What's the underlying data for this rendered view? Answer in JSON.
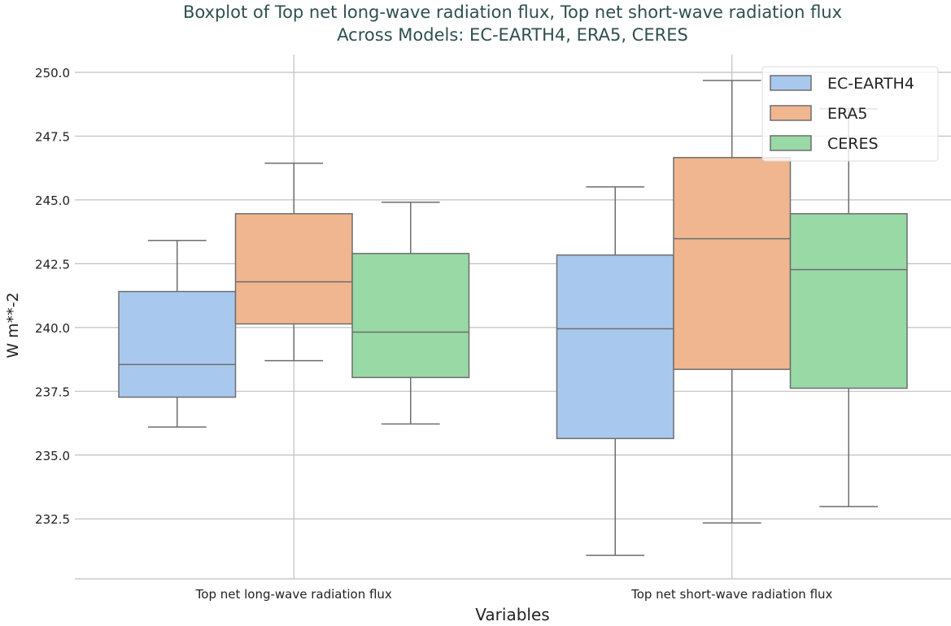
{
  "chart_data": {
    "type": "boxplot",
    "title": "Boxplot of Top net long-wave radiation flux, Top net short-wave radiation flux",
    "subtitle": "Across Models: EC-EARTH4, ERA5, CERES",
    "xlabel": "Variables",
    "ylabel": "W m**-2",
    "ylim": [
      230.15,
      250.7
    ],
    "yticks": [
      "232.5",
      "235.0",
      "237.5",
      "240.0",
      "242.5",
      "245.0",
      "247.5",
      "250.0"
    ],
    "ytick_values": [
      232.5,
      235.0,
      237.5,
      240.0,
      242.5,
      245.0,
      247.5,
      250.0
    ],
    "categories": [
      "Top net long-wave radiation flux",
      "Top net short-wave radiation flux"
    ],
    "grid": true,
    "legend_position": "top-right",
    "title_color": "#2f4f4f",
    "series": [
      {
        "name": "EC-EARTH4",
        "color": "#a9c8ed",
        "boxes": [
          {
            "whislo": 236.1,
            "q1": 237.27,
            "med": 238.55,
            "q3": 241.41,
            "whishi": 243.41
          },
          {
            "whislo": 231.07,
            "q1": 235.65,
            "med": 239.95,
            "q3": 242.84,
            "whishi": 245.51
          }
        ]
      },
      {
        "name": "ERA5",
        "color": "#f0b690",
        "boxes": [
          {
            "whislo": 238.7,
            "q1": 240.14,
            "med": 241.79,
            "q3": 244.46,
            "whishi": 246.44
          },
          {
            "whislo": 232.34,
            "q1": 238.36,
            "med": 243.48,
            "q3": 246.66,
            "whishi": 249.68
          }
        ]
      },
      {
        "name": "CERES",
        "color": "#98d9a6",
        "boxes": [
          {
            "whislo": 236.22,
            "q1": 238.04,
            "med": 239.82,
            "q3": 242.9,
            "whishi": 244.91
          },
          {
            "whislo": 232.98,
            "q1": 237.62,
            "med": 242.27,
            "q3": 244.46,
            "whishi": 248.57
          }
        ]
      }
    ]
  }
}
